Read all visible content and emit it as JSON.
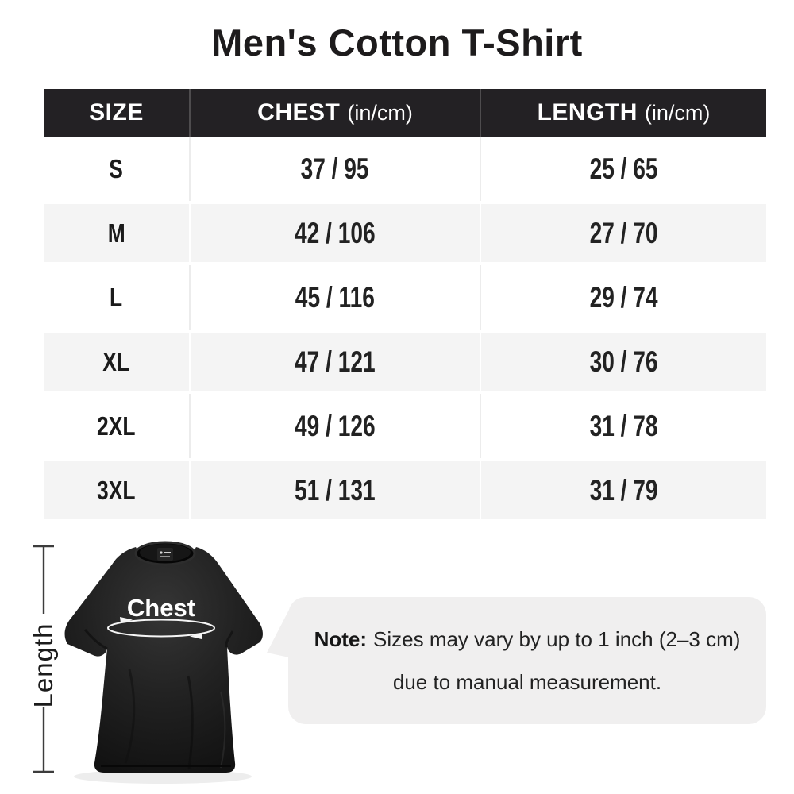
{
  "title": "Men's Cotton T-Shirt",
  "size_chart": {
    "headers": {
      "size": "SIZE",
      "chest": "CHEST",
      "chest_unit": "(in/cm)",
      "length": "LENGTH",
      "length_unit": "(in/cm)"
    },
    "rows": [
      {
        "size": "S",
        "chest": "37 / 95",
        "length": "25 / 65"
      },
      {
        "size": "M",
        "chest": "42 / 106",
        "length": "27 / 70"
      },
      {
        "size": "L",
        "chest": "45 / 116",
        "length": "29 / 74"
      },
      {
        "size": "XL",
        "chest": "47 / 121",
        "length": "30 / 76"
      },
      {
        "size": "2XL",
        "chest": "49 / 126",
        "length": "31 / 78"
      },
      {
        "size": "3XL",
        "chest": "51 / 131",
        "length": "31 / 79"
      }
    ]
  },
  "diagram": {
    "chest_label": "Chest",
    "length_label": "Length"
  },
  "note": {
    "label": "Note:",
    "line1": "Sizes may vary by up to 1 inch (2–3 cm)",
    "line2": "due to manual measurement."
  },
  "colors": {
    "header_bg": "#232124",
    "header_divider": "#4e4c4e",
    "row_alt": "#f4f4f4",
    "row_divider": "#ececec",
    "bubble": "#f0efef",
    "shirt": "#1f1f1f",
    "ink": "#1d1b1c"
  },
  "chart_data": {
    "type": "table",
    "title": "Men's Cotton T-Shirt",
    "columns": [
      "SIZE",
      "CHEST (in/cm)",
      "LENGTH (in/cm)"
    ],
    "rows": [
      [
        "S",
        "37 / 95",
        "25 / 65"
      ],
      [
        "M",
        "42 / 106",
        "27 / 70"
      ],
      [
        "L",
        "45 / 116",
        "29 / 74"
      ],
      [
        "XL",
        "47 / 121",
        "30 / 76"
      ],
      [
        "2XL",
        "49 / 126",
        "31 / 78"
      ],
      [
        "3XL",
        "51 / 131",
        "31 / 79"
      ]
    ]
  }
}
